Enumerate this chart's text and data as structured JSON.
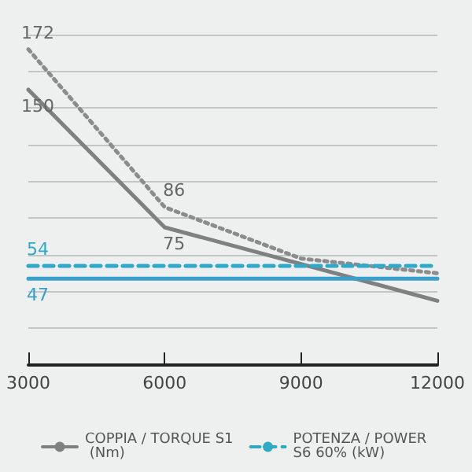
{
  "chart_data": {
    "type": "line",
    "xlim": [
      3000,
      12000
    ],
    "xticks": [
      3000,
      6000,
      9000,
      12000
    ],
    "ylim": [
      0,
      180
    ],
    "yticks": [
      {
        "value": 20,
        "label": null
      },
      {
        "value": 40,
        "label": null
      },
      {
        "value": 60,
        "label": null
      },
      {
        "value": 80,
        "label": null
      },
      {
        "value": 100,
        "label": null
      },
      {
        "value": 120,
        "label": null
      },
      {
        "value": 140,
        "label": null
      },
      {
        "value": 160,
        "label": null
      },
      {
        "value": 180,
        "label": null
      }
    ],
    "tick_labels": "x",
    "grid": "y",
    "legend": "bottom",
    "marker": "none",
    "series": [
      {
        "x": [
          3000,
          6000,
          9000,
          12000
        ],
        "values": [
          172,
          86,
          58,
          50
        ],
        "value_labels": [
          "172",
          "86",
          null,
          null
        ],
        "color": "#8c8c8c",
        "line_style": "dotted"
      },
      {
        "name": "COPPIA / TORQUE S1 (Nm)",
        "x": [
          3000,
          6000,
          12000
        ],
        "values": [
          150,
          75,
          35
        ],
        "value_labels": [
          "150",
          "75",
          null
        ],
        "color": "#808080",
        "line_style": "solid"
      },
      {
        "name": "POTENZA / POWER S6 60% (kW)",
        "x": [
          3000,
          12000
        ],
        "values": [
          54,
          54
        ],
        "value_labels": [
          "54",
          null
        ],
        "color": "#2fa9c6",
        "line_style": "dashed"
      },
      {
        "x": [
          3000,
          12000
        ],
        "values": [
          47,
          47
        ],
        "value_labels": [
          "47",
          null
        ],
        "color": "#3a9fc9",
        "line_style": "solid"
      }
    ]
  }
}
